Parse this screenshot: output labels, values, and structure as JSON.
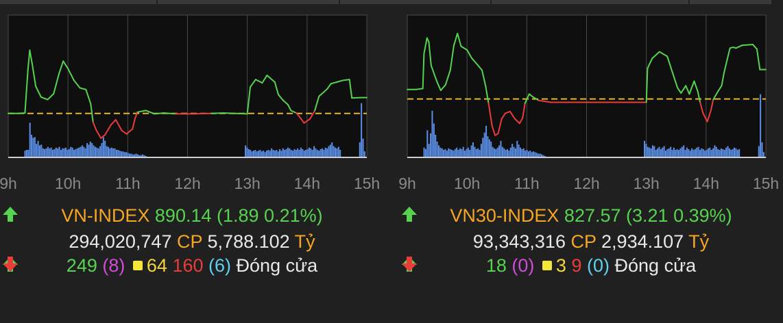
{
  "colors": {
    "background": "#202020",
    "plot_bg": "#0f0f0f",
    "up": "#56d34f",
    "down": "#ec3b3b",
    "reference": "#e8b62a",
    "volume": "#5b8fe6",
    "label_orange": "#f5a623"
  },
  "panels": [
    {
      "index_name": "VN-INDEX",
      "direction_icon": "arrow-up-icon",
      "value": "890.14",
      "change": "(1.89 0.21%)",
      "volume": "294,020,747",
      "cp_label": "CP",
      "turnover": "5,788.102",
      "unit": "Tỷ",
      "advancers": "249",
      "ceiling": "(8)",
      "unchanged": "64",
      "decliners": "160",
      "floor": "(6)",
      "status": "Đóng cửa"
    },
    {
      "index_name": "VN30-INDEX",
      "direction_icon": "arrow-up-icon",
      "value": "827.57",
      "change": "(3.21 0.39%)",
      "volume": "93,343,316",
      "cp_label": "CP",
      "turnover": "2,934.107",
      "unit": "Tỷ",
      "advancers": "18",
      "ceiling": "(0)",
      "unchanged": "3",
      "decliners": "9",
      "floor": "(0)",
      "status": "Đóng cửa"
    }
  ],
  "chart_data": [
    {
      "type": "line",
      "x_tick_labels": [
        "9h",
        "10h",
        "11h",
        "12h",
        "13h",
        "14h",
        "15h"
      ],
      "xlim": [
        9,
        15
      ],
      "ylim": [
        883,
        900
      ],
      "reference": 888.25,
      "series": [
        {
          "values": [
            [
              9.0,
              888.25
            ],
            [
              9.15,
              888.25
            ],
            [
              9.28,
              888.3
            ],
            [
              9.33,
              893.5
            ],
            [
              9.36,
              895.8
            ],
            [
              9.4,
              894.2
            ],
            [
              9.46,
              891.5
            ],
            [
              9.55,
              890.2
            ],
            [
              9.66,
              889.9
            ],
            [
              9.76,
              890.6
            ],
            [
              9.85,
              893.0
            ],
            [
              9.92,
              894.5
            ],
            [
              10.0,
              893.6
            ],
            [
              10.1,
              892.2
            ],
            [
              10.2,
              891.3
            ],
            [
              10.3,
              891.1
            ],
            [
              10.38,
              889.4
            ],
            [
              10.42,
              887.2
            ],
            [
              10.47,
              886.3
            ],
            [
              10.55,
              885.3
            ],
            [
              10.62,
              885.7
            ],
            [
              10.72,
              886.9
            ],
            [
              10.8,
              887.5
            ],
            [
              10.9,
              886.2
            ],
            [
              10.98,
              885.8
            ],
            [
              11.08,
              886.4
            ],
            [
              11.12,
              887.6
            ],
            [
              11.16,
              888.4
            ],
            [
              11.3,
              888.6
            ],
            [
              11.45,
              888.2
            ],
            [
              11.6,
              888.3
            ],
            [
              11.8,
              888.2
            ],
            [
              12.1,
              888.2
            ],
            [
              12.4,
              888.25
            ],
            [
              12.6,
              888.3
            ],
            [
              13.0,
              888.2
            ],
            [
              13.05,
              891.4
            ],
            [
              13.14,
              892.3
            ],
            [
              13.25,
              891.9
            ],
            [
              13.33,
              892.8
            ],
            [
              13.46,
              892.0
            ],
            [
              13.52,
              890.5
            ],
            [
              13.6,
              889.8
            ],
            [
              13.68,
              889.3
            ],
            [
              13.73,
              888.6
            ],
            [
              13.82,
              888.3
            ],
            [
              13.88,
              887.8
            ],
            [
              13.95,
              887.1
            ],
            [
              14.05,
              887.6
            ],
            [
              14.13,
              888.6
            ],
            [
              14.2,
              890.3
            ],
            [
              14.28,
              890.8
            ],
            [
              14.34,
              891.2
            ],
            [
              14.4,
              891.8
            ],
            [
              14.5,
              892.0
            ],
            [
              14.6,
              892.2
            ],
            [
              14.71,
              892.3
            ],
            [
              14.75,
              890.1
            ],
            [
              14.9,
              890.14
            ],
            [
              15.0,
              890.14
            ]
          ]
        }
      ],
      "volume_bars": [
        0.09,
        0.1,
        0.1,
        0.46,
        0.3,
        0.26,
        0.27,
        0.18,
        0.22,
        0.16,
        0.17,
        0.12,
        0.11,
        0.12,
        0.14,
        0.12,
        0.13,
        0.1,
        0.11,
        0.13,
        0.12,
        0.14,
        0.1,
        0.12,
        0.12,
        0.13,
        0.1,
        0.11,
        0.14,
        0.13,
        0.1,
        0.11,
        0.12,
        0.13,
        0.14,
        0.16,
        0.14,
        0.12,
        0.19,
        0.17,
        0.21,
        0.19,
        0.16,
        0.14,
        0.13,
        0.12,
        0.15,
        0.19,
        0.27,
        0.22,
        0.15,
        0.14,
        0.12,
        0.13,
        0.12,
        0.12,
        0.1,
        0.1,
        0.09,
        0.08,
        0.08,
        0.07,
        0.07,
        0.06,
        0.05,
        0.05,
        0.04,
        0.04,
        0.05,
        0.04,
        0.03,
        0.03,
        0.04,
        0.03,
        0.02,
        0,
        0,
        0,
        0,
        0,
        0,
        0,
        0,
        0,
        0,
        0,
        0,
        0,
        0,
        0,
        0,
        0,
        0,
        0,
        0,
        0,
        0,
        0,
        0,
        0,
        0,
        0,
        0,
        0,
        0,
        0,
        0,
        0,
        0,
        0,
        0,
        0,
        0,
        0,
        0,
        0,
        0,
        0,
        0,
        0,
        0,
        0,
        0,
        0,
        0,
        0,
        0,
        0,
        0,
        0,
        0,
        0,
        0,
        0,
        0,
        0.16,
        0.13,
        0.11,
        0.1,
        0.08,
        0.09,
        0.1,
        0.08,
        0.09,
        0.1,
        0.08,
        0.09,
        0.07,
        0.09,
        0.1,
        0.09,
        0.12,
        0.1,
        0.09,
        0.1,
        0.08,
        0.11,
        0.09,
        0.12,
        0.1,
        0.11,
        0.13,
        0.12,
        0.1,
        0.09,
        0.11,
        0.1,
        0.12,
        0.1,
        0.13,
        0.11,
        0.09,
        0.1,
        0.11,
        0.13,
        0.12,
        0.1,
        0.15,
        0.12,
        0.1,
        0.09,
        0.11,
        0.12,
        0.1,
        0.13,
        0.12,
        0.15,
        0.17,
        0.2,
        0.15,
        0.13,
        0.12,
        0.14,
        0.1,
        0,
        0,
        0,
        0,
        0,
        0,
        0,
        0,
        0,
        0,
        0,
        0.2,
        0.72,
        0.25,
        0.08
      ],
      "volume_ends": 14.98
    },
    {
      "type": "line",
      "x_tick_labels": [
        "9h",
        "10h",
        "11h",
        "12h",
        "13h",
        "14h",
        "15h"
      ],
      "xlim": [
        9,
        15
      ],
      "ylim": [
        818,
        833.5
      ],
      "reference": 824.36,
      "series": [
        {
          "values": [
            [
              9.0,
              825.4
            ],
            [
              9.15,
              825.4
            ],
            [
              9.26,
              825.5
            ],
            [
              9.28,
              829.3
            ],
            [
              9.33,
              831.0
            ],
            [
              9.36,
              830.6
            ],
            [
              9.4,
              828.0
            ],
            [
              9.46,
              826.9
            ],
            [
              9.5,
              826.2
            ],
            [
              9.56,
              825.3
            ],
            [
              9.64,
              825.9
            ],
            [
              9.72,
              827.5
            ],
            [
              9.78,
              830.2
            ],
            [
              9.84,
              831.5
            ],
            [
              9.9,
              830.1
            ],
            [
              10.0,
              829.7
            ],
            [
              10.08,
              828.8
            ],
            [
              10.16,
              828.2
            ],
            [
              10.25,
              827.5
            ],
            [
              10.31,
              825.8
            ],
            [
              10.36,
              823.9
            ],
            [
              10.42,
              821.4
            ],
            [
              10.47,
              820.4
            ],
            [
              10.52,
              820.6
            ],
            [
              10.58,
              822.2
            ],
            [
              10.64,
              822.8
            ],
            [
              10.72,
              823.0
            ],
            [
              10.8,
              822.2
            ],
            [
              10.88,
              821.7
            ],
            [
              10.93,
              822.3
            ],
            [
              10.97,
              823.9
            ],
            [
              11.04,
              824.9
            ],
            [
              11.1,
              824.6
            ],
            [
              11.2,
              824.2
            ],
            [
              11.4,
              824.0
            ],
            [
              11.8,
              824.0
            ],
            [
              12.2,
              824.0
            ],
            [
              12.6,
              824.0
            ],
            [
              13.0,
              824.0
            ],
            [
              13.02,
              827.7
            ],
            [
              13.1,
              828.8
            ],
            [
              13.22,
              829.5
            ],
            [
              13.35,
              829.0
            ],
            [
              13.45,
              827.0
            ],
            [
              13.52,
              825.6
            ],
            [
              13.58,
              825.0
            ],
            [
              13.66,
              825.8
            ],
            [
              13.72,
              824.9
            ],
            [
              13.8,
              826.3
            ],
            [
              13.86,
              825.2
            ],
            [
              13.9,
              824.0
            ],
            [
              13.95,
              822.8
            ],
            [
              14.02,
              821.9
            ],
            [
              14.08,
              823.1
            ],
            [
              14.12,
              824.3
            ],
            [
              14.2,
              825.2
            ],
            [
              14.26,
              825.8
            ],
            [
              14.3,
              827.2
            ],
            [
              14.34,
              828.3
            ],
            [
              14.4,
              829.9
            ],
            [
              14.45,
              830.0
            ],
            [
              14.5,
              829.9
            ],
            [
              14.6,
              830.2
            ],
            [
              14.78,
              830.3
            ],
            [
              14.85,
              829.8
            ],
            [
              14.9,
              827.57
            ],
            [
              15.0,
              827.57
            ]
          ]
        }
      ],
      "volume_bars": [
        0.13,
        0.11,
        0.36,
        0.18,
        0.32,
        0.62,
        0.45,
        0.3,
        0.21,
        0.16,
        0.13,
        0.12,
        0.1,
        0.11,
        0.09,
        0.12,
        0.11,
        0.1,
        0.09,
        0.11,
        0.13,
        0.1,
        0.12,
        0.11,
        0.14,
        0.09,
        0.11,
        0.13,
        0.1,
        0.16,
        0.2,
        0.14,
        0.11,
        0.12,
        0.1,
        0.18,
        0.26,
        0.33,
        0.42,
        0.28,
        0.24,
        0.21,
        0.14,
        0.12,
        0.11,
        0.13,
        0.16,
        0.22,
        0.14,
        0.12,
        0.1,
        0.11,
        0.09,
        0.13,
        0.18,
        0.14,
        0.12,
        0.22,
        0.17,
        0.13,
        0.11,
        0.12,
        0.09,
        0.1,
        0.08,
        0.09,
        0.07,
        0.08,
        0.07,
        0.06,
        0.05,
        0.05,
        0.04,
        0.03,
        0.02,
        0,
        0,
        0,
        0,
        0,
        0,
        0,
        0,
        0,
        0,
        0,
        0,
        0,
        0,
        0,
        0,
        0,
        0,
        0,
        0,
        0,
        0,
        0,
        0,
        0,
        0,
        0,
        0,
        0,
        0,
        0,
        0,
        0,
        0,
        0,
        0,
        0,
        0,
        0,
        0,
        0,
        0,
        0,
        0,
        0,
        0,
        0,
        0,
        0,
        0,
        0,
        0,
        0,
        0,
        0,
        0,
        0,
        0,
        0,
        0,
        0.22,
        0.18,
        0.14,
        0.13,
        0.12,
        0.16,
        0.15,
        0.1,
        0.12,
        0.14,
        0.11,
        0.13,
        0.15,
        0.09,
        0.11,
        0.12,
        0.14,
        0.1,
        0.13,
        0.1,
        0.11,
        0.1,
        0.12,
        0.14,
        0.16,
        0.1,
        0.13,
        0.11,
        0.09,
        0.12,
        0.1,
        0.11,
        0.13,
        0.14,
        0.1,
        0.12,
        0.11,
        0.09,
        0.1,
        0.12,
        0.13,
        0.1,
        0.12,
        0.16,
        0.14,
        0.11,
        0.1,
        0.12,
        0.11,
        0.1,
        0.13,
        0.15,
        0.12,
        0.1,
        0.11,
        0.13,
        0.12,
        0.1,
        0.11,
        0,
        0,
        0,
        0,
        0,
        0,
        0,
        0,
        0,
        0,
        0,
        0.15,
        0.84,
        0.2,
        0.07
      ],
      "volume_ends": 14.98
    }
  ]
}
